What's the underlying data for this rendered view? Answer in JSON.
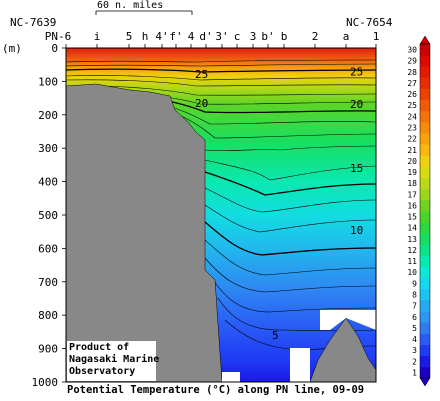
{
  "chart_data": {
    "type": "heatmap",
    "title": "Potential Temperature (°C) along PN line, 09-09",
    "ylabel": "(m)",
    "ylim": [
      0,
      1000
    ],
    "y_ticks": [
      "0",
      "100",
      "200",
      "300",
      "400",
      "500",
      "600",
      "700",
      "800",
      "900",
      "1000"
    ],
    "stations": [
      "PN-6",
      "i",
      "5",
      "h",
      "4'",
      "f'",
      "4",
      "d'",
      "3'",
      "c",
      "3",
      "b'",
      "b",
      "2",
      "a",
      "1"
    ],
    "station_ids": {
      "left": "NC-7639",
      "right": "NC-7654"
    },
    "scale_label": "60 n. miles",
    "colorbar": {
      "min": 1,
      "max": 30,
      "labels": [
        "1",
        "2",
        "3",
        "4",
        "5",
        "6",
        "7",
        "8",
        "9",
        "10",
        "11",
        "12",
        "13",
        "14",
        "15",
        "16",
        "17",
        "18",
        "19",
        "20",
        "21",
        "22",
        "23",
        "24",
        "25",
        "26",
        "27",
        "28",
        "29",
        "30"
      ],
      "colors": [
        "#1c00c8",
        "#1a1ae6",
        "#1f3cf5",
        "#2a5cf5",
        "#2f7cf2",
        "#2d96f0",
        "#25acee",
        "#1bc3ef",
        "#15d9ec",
        "#0fe8d8",
        "#0ae9b2",
        "#0de48a",
        "#18df62",
        "#2ad840",
        "#4ad42a",
        "#72d31e",
        "#9ad61a",
        "#bbd916",
        "#d8da12",
        "#f0d010",
        "#f7b90e",
        "#f8a20c",
        "#f78b0a",
        "#f57208",
        "#f25a06",
        "#ee4204",
        "#e92c03",
        "#e31902",
        "#dc0a02",
        "#cc0000"
      ]
    },
    "contour_labels": [
      {
        "value": "25",
        "x_station": "4",
        "depth": 78
      },
      {
        "value": "25",
        "x_station": "a",
        "depth": 70
      },
      {
        "value": "20",
        "x_station": "4",
        "depth": 165
      },
      {
        "value": "20",
        "x_station": "a",
        "depth": 168
      },
      {
        "value": "15",
        "x_station": "a",
        "depth": 360
      },
      {
        "value": "10",
        "x_station": "a",
        "depth": 545
      },
      {
        "value": "5",
        "x_station": "b'",
        "depth": 860
      }
    ]
  },
  "credit": [
    "Product of",
    "Nagasaki Marine",
    "Observatory"
  ]
}
